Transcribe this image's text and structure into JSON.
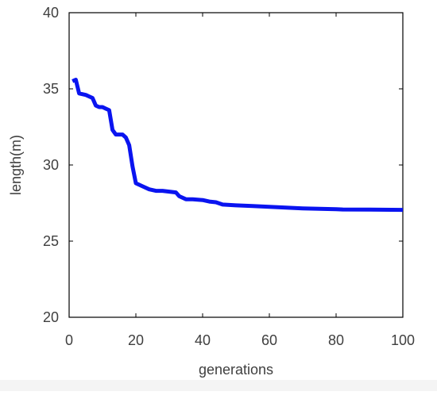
{
  "chart_data": {
    "type": "line",
    "title": "",
    "xlabel": "generations",
    "ylabel": "length(m)",
    "xlim": [
      0,
      100
    ],
    "ylim": [
      20,
      40
    ],
    "xticks": [
      0,
      20,
      40,
      60,
      80,
      100
    ],
    "yticks": [
      20,
      25,
      30,
      35,
      40
    ],
    "grid": false,
    "legend": "none",
    "series": [
      {
        "color": "#0a14f0",
        "x": [
          1,
          2,
          3,
          5,
          6,
          7,
          8,
          9,
          10,
          11,
          12,
          13,
          14,
          15,
          16,
          17,
          18,
          19,
          20,
          22,
          24,
          26,
          28,
          30,
          32,
          33,
          35,
          37,
          40,
          42,
          44,
          46,
          50,
          55,
          60,
          65,
          70,
          75,
          80,
          82,
          90,
          100
        ],
        "y": [
          35.5,
          35.6,
          34.7,
          34.6,
          34.5,
          34.4,
          33.9,
          33.8,
          33.8,
          33.7,
          33.6,
          32.3,
          32.0,
          32.0,
          32.0,
          31.8,
          31.3,
          29.9,
          28.8,
          28.6,
          28.4,
          28.3,
          28.3,
          28.25,
          28.2,
          27.95,
          27.75,
          27.75,
          27.7,
          27.6,
          27.55,
          27.4,
          27.35,
          27.3,
          27.25,
          27.2,
          27.15,
          27.12,
          27.1,
          27.08,
          27.07,
          27.05
        ]
      }
    ]
  }
}
